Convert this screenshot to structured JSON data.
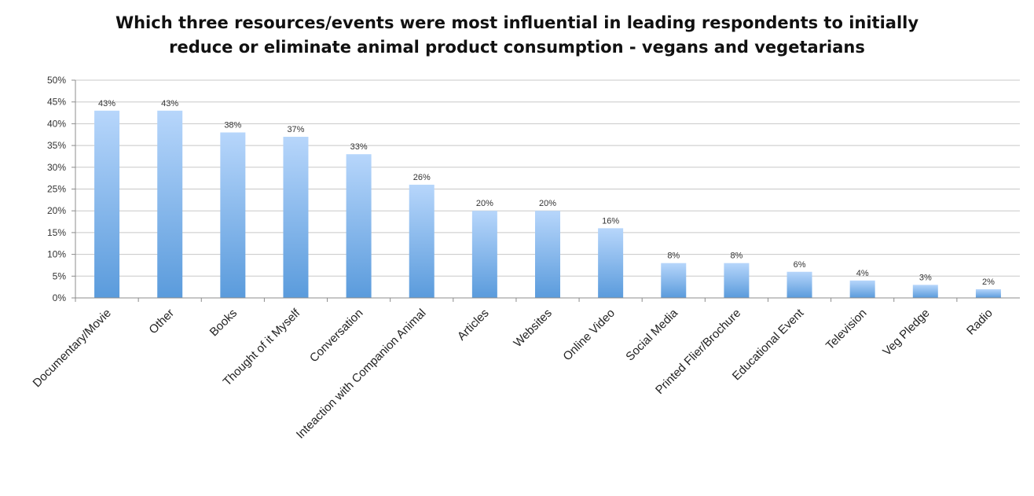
{
  "chart_data": {
    "type": "bar",
    "title_lines": [
      "Which three resources/events were most influential in leading respondents to initially",
      "reduce or eliminate animal product consumption - vegans and vegetarians"
    ],
    "categories": [
      "Documentary/Movie",
      "Other",
      "Books",
      "Thought of it Myself",
      "Conversation",
      "Inteaction with Companion Animal",
      "Articles",
      "Websites",
      "Online Video",
      "Social Media",
      "Printed Flier/Brochure",
      "Educational Event",
      "Television",
      "Veg Pledge",
      "Radio"
    ],
    "values": [
      43,
      43,
      38,
      37,
      33,
      26,
      20,
      20,
      16,
      8,
      8,
      6,
      4,
      3,
      2
    ],
    "data_labels": [
      "43%",
      "43%",
      "38%",
      "37%",
      "33%",
      "26%",
      "20%",
      "20%",
      "16%",
      "8%",
      "8%",
      "6%",
      "4%",
      "3%",
      "2%"
    ],
    "y_ticks": [
      0,
      5,
      10,
      15,
      20,
      25,
      30,
      35,
      40,
      45,
      50
    ],
    "y_tick_labels": [
      "0%",
      "5%",
      "10%",
      "15%",
      "20%",
      "25%",
      "30%",
      "35%",
      "40%",
      "45%",
      "50%"
    ],
    "ylim": [
      0,
      50
    ],
    "grid": true,
    "legend": "none",
    "colors": {
      "bar_top": "#b7d6fb",
      "bar_bottom": "#5a9bdc",
      "grid": "#c8c8c8",
      "axis": "#8c8c8c"
    }
  }
}
